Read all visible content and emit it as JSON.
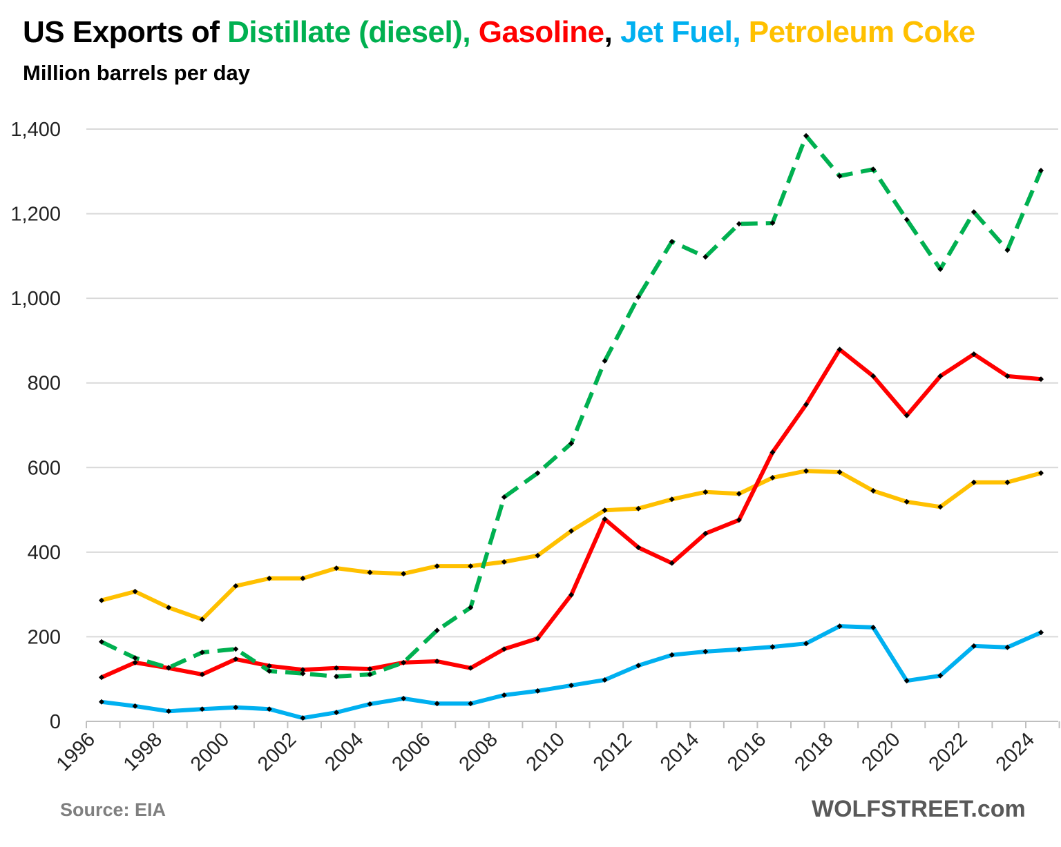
{
  "chart_data": {
    "type": "line",
    "title_parts": [
      {
        "text": "US Exports of ",
        "color": "#000000"
      },
      {
        "text": "Distillate (diesel), ",
        "color": "#00B050"
      },
      {
        "text": "Gasoline",
        "color": "#FF0000"
      },
      {
        "text": ", ",
        "color": "#000000"
      },
      {
        "text": "Jet Fuel, ",
        "color": "#00B0F0"
      },
      {
        "text": "Petroleum Coke",
        "color": "#FFC000"
      }
    ],
    "subtitle": "Million barrels per day",
    "source": "Source: EIA",
    "brand": "WOLFSTREET.com",
    "ylim": [
      0,
      1400
    ],
    "yticks": [
      "0",
      "200",
      "400",
      "600",
      "800",
      "1,000",
      "1,200",
      "1,400"
    ],
    "ytick_values": [
      0,
      200,
      400,
      600,
      800,
      1000,
      1200,
      1400
    ],
    "xtick_labels": [
      "1996",
      "1998",
      "2000",
      "2002",
      "2004",
      "2006",
      "2008",
      "2010",
      "2012",
      "2014",
      "2016",
      "2018",
      "2020",
      "2022",
      "2024"
    ],
    "grid": true,
    "x": [
      1996,
      1997,
      1998,
      1999,
      2000,
      2001,
      2002,
      2003,
      2004,
      2005,
      2006,
      2007,
      2008,
      2009,
      2010,
      2011,
      2012,
      2013,
      2014,
      2015,
      2016,
      2017,
      2018,
      2019,
      2020,
      2021,
      2022,
      2023,
      2024
    ],
    "series": [
      {
        "name": "Petroleum Coke",
        "color": "#FFC000",
        "dashed": false,
        "values": [
          286,
          307,
          269,
          241,
          320,
          338,
          338,
          362,
          352,
          349,
          367,
          367,
          377,
          392,
          450,
          499,
          503,
          525,
          542,
          538,
          576,
          592,
          589,
          545,
          519,
          507,
          565,
          565,
          587
        ]
      },
      {
        "name": "Jet Fuel",
        "color": "#00B0F0",
        "dashed": false,
        "values": [
          46,
          36,
          24,
          29,
          33,
          29,
          8,
          21,
          41,
          54,
          42,
          42,
          62,
          72,
          85,
          98,
          132,
          157,
          165,
          170,
          176,
          184,
          225,
          222,
          96,
          108,
          178,
          175,
          210
        ]
      },
      {
        "name": "Gasoline",
        "color": "#FF0000",
        "dashed": false,
        "values": [
          104,
          139,
          126,
          111,
          147,
          131,
          122,
          126,
          124,
          139,
          142,
          126,
          171,
          196,
          299,
          478,
          411,
          374,
          444,
          476,
          636,
          749,
          879,
          816,
          723,
          816,
          868,
          816,
          809
        ]
      },
      {
        "name": "Distillate (diesel)",
        "color": "#00B050",
        "dashed": true,
        "values": [
          188,
          150,
          127,
          163,
          171,
          119,
          113,
          106,
          111,
          139,
          215,
          269,
          530,
          587,
          657,
          852,
          1003,
          1134,
          1098,
          1176,
          1178,
          1384,
          1289,
          1305,
          1186,
          1069,
          1204,
          1114,
          1302
        ]
      }
    ]
  }
}
